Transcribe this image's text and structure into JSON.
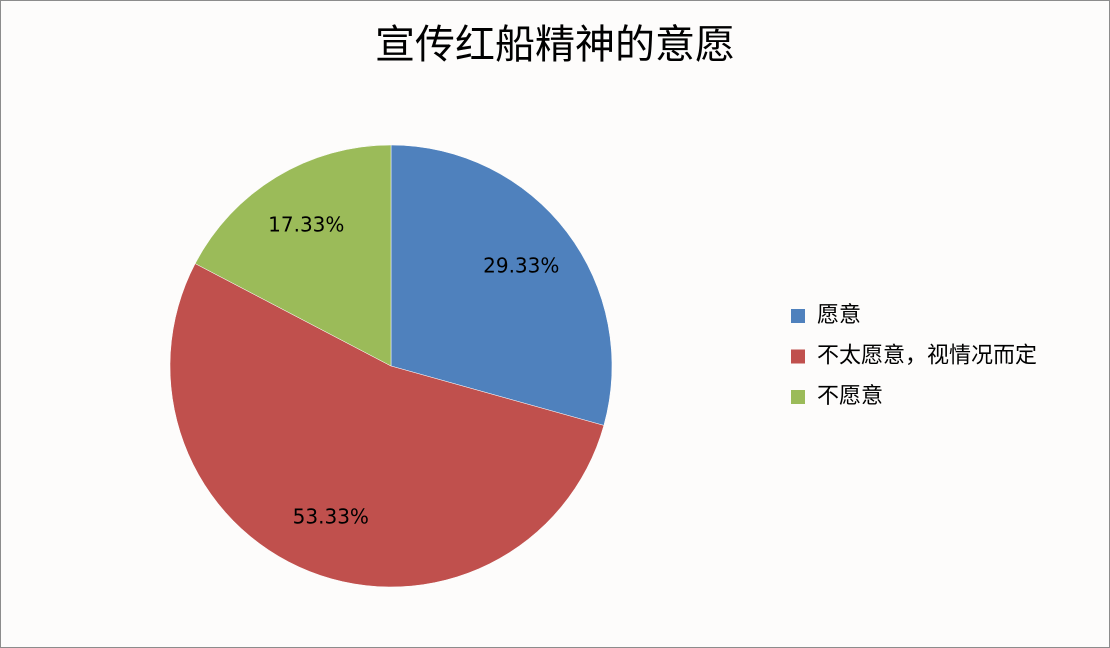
{
  "chart_data": {
    "type": "pie",
    "title": "宣传红船精神的意愿",
    "categories": [
      "愿意",
      "不太愿意，视情况而定",
      "不愿意"
    ],
    "values": [
      29.33,
      53.33,
      17.33
    ],
    "value_labels": [
      "29.33%",
      "53.33%",
      "17.33%"
    ],
    "colors": [
      "#4f81bd",
      "#c0504d",
      "#9bbb59"
    ],
    "legend": "right"
  }
}
